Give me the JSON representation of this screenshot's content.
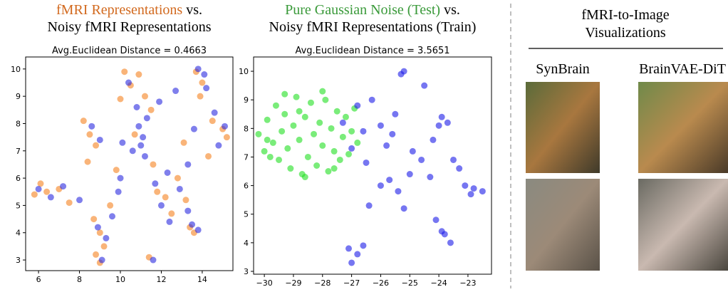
{
  "chart_data": [
    {
      "type": "scatter",
      "title_joiner": "vs.",
      "subtitle": "Avg.Euclidean Distance = 0.4663",
      "xlim": [
        5.37,
        15.5
      ],
      "ylim": [
        2.61,
        10.44
      ],
      "xticks": [
        6,
        8,
        10,
        12,
        14
      ],
      "yticks": [
        3,
        4,
        5,
        6,
        7,
        8,
        9,
        10
      ],
      "series": [
        {
          "name": "fMRI Representations",
          "color": "#f58220",
          "label_color": "#d2691e",
          "x": [
            5.8,
            6.1,
            6.4,
            7.0,
            7.5,
            8.2,
            8.5,
            8.8,
            8.4,
            8.7,
            9.0,
            8.8,
            9.0,
            9.2,
            9.5,
            9.8,
            10.2,
            10.5,
            10.0,
            10.9,
            11.2,
            11.5,
            10.7,
            11.6,
            11.4,
            11.8,
            12.2,
            12.5,
            12.8,
            13.2,
            13.4,
            13.6,
            13.1,
            13.7,
            14.0,
            13.9,
            14.5,
            15.0,
            15.2,
            14.3
          ],
          "values": [
            5.4,
            5.8,
            5.5,
            5.6,
            5.1,
            8.1,
            7.6,
            7.2,
            6.6,
            4.5,
            4.0,
            3.2,
            2.9,
            3.5,
            5.0,
            6.3,
            9.9,
            9.4,
            8.9,
            9.8,
            9.0,
            8.5,
            7.6,
            6.5,
            3.1,
            5.5,
            5.3,
            4.7,
            6.0,
            5.2,
            4.2,
            4.0,
            7.3,
            9.9,
            9.5,
            9.0,
            8.1,
            7.8,
            7.5,
            6.8
          ]
        },
        {
          "name": "Noisy fMRI Representations",
          "color": "#2a2ae0",
          "label_color": "#4169e1",
          "x": [
            6.0,
            6.6,
            7.2,
            8.0,
            8.6,
            9.0,
            8.9,
            9.1,
            9.3,
            9.6,
            10.0,
            10.4,
            10.8,
            10.9,
            11.1,
            11.0,
            10.6,
            11.3,
            11.2,
            11.7,
            11.6,
            12.0,
            12.4,
            12.9,
            13.3,
            13.5,
            13.8,
            13.3,
            13.6,
            13.8,
            14.1,
            14.2,
            14.6,
            15.1,
            14.8,
            12.7,
            11.9,
            10.1,
            9.9,
            12.3
          ],
          "values": [
            5.6,
            5.3,
            5.7,
            5.2,
            7.9,
            7.4,
            4.2,
            3.0,
            3.8,
            4.6,
            6.0,
            9.5,
            8.6,
            7.9,
            7.5,
            7.2,
            7.0,
            8.2,
            6.8,
            5.8,
            3.0,
            5.0,
            4.4,
            5.6,
            4.8,
            4.3,
            4.1,
            6.5,
            7.8,
            10.0,
            9.8,
            9.3,
            8.4,
            7.9,
            7.2,
            9.2,
            8.8,
            7.3,
            5.5,
            6.2
          ]
        }
      ]
    },
    {
      "type": "scatter",
      "title_joiner": "vs.",
      "subtitle": "Avg.Euclidean Distance = 3.5651",
      "xlim": [
        -30.37,
        -22.19
      ],
      "ylim": [
        2.9,
        10.5
      ],
      "xticks": [
        {
          "value": -30,
          "label": "−30"
        },
        {
          "value": -29,
          "label": "−29"
        },
        {
          "value": -28,
          "label": "−28"
        },
        {
          "value": -27,
          "label": "−27"
        },
        {
          "value": -26,
          "label": "−26"
        },
        {
          "value": -25,
          "label": "−25"
        },
        {
          "value": -24,
          "label": "−24"
        },
        {
          "value": -23,
          "label": "−23"
        }
      ],
      "yticks": [
        3,
        4,
        5,
        6,
        7,
        8,
        9,
        10
      ],
      "series": [
        {
          "name": "Pure Gaussian Noise (Test)",
          "color": "#22e022",
          "label_color": "#3a9a3a",
          "x": [
            -30.2,
            -30.0,
            -29.9,
            -29.7,
            -29.6,
            -29.5,
            -29.4,
            -29.3,
            -29.2,
            -29.1,
            -29.0,
            -28.9,
            -28.8,
            -28.7,
            -28.6,
            -28.5,
            -28.4,
            -28.3,
            -28.2,
            -28.1,
            -28.0,
            -27.9,
            -27.8,
            -27.7,
            -27.6,
            -27.5,
            -27.4,
            -27.3,
            -27.2,
            -27.1,
            -27.0,
            -26.9,
            -26.8,
            -29.8,
            -29.3,
            -28.6,
            -28.0,
            -27.6,
            -29.9,
            -28.8
          ],
          "values": [
            7.8,
            7.2,
            8.3,
            7.5,
            8.8,
            6.9,
            7.9,
            8.5,
            7.3,
            6.6,
            8.1,
            9.1,
            7.6,
            6.4,
            8.4,
            7.0,
            8.9,
            7.8,
            6.7,
            8.2,
            7.4,
            9.0,
            6.5,
            8.0,
            7.2,
            8.6,
            6.9,
            7.7,
            8.4,
            7.1,
            7.9,
            8.7,
            7.5,
            7.0,
            9.2,
            6.3,
            9.3,
            6.6,
            7.6,
            8.6
          ]
        },
        {
          "name": "Noisy fMRI Representations (Train)",
          "color": "#1a1ae8",
          "label_color": "#4169e1",
          "x": [
            -27.3,
            -27.0,
            -26.8,
            -26.6,
            -26.5,
            -26.3,
            -26.0,
            -25.8,
            -25.7,
            -25.5,
            -25.3,
            -25.2,
            -25.4,
            -25.2,
            -25.0,
            -24.9,
            -24.6,
            -24.3,
            -24.2,
            -24.0,
            -23.9,
            -23.7,
            -23.5,
            -23.3,
            -23.1,
            -22.8,
            -22.5,
            -22.9,
            -24.1,
            -23.9,
            -23.6,
            -23.8,
            -27.1,
            -27.0,
            -26.8,
            -26.6,
            -26.0,
            -26.4,
            -25.6,
            -24.5
          ],
          "values": [
            8.2,
            7.3,
            8.8,
            7.9,
            6.8,
            9.0,
            8.1,
            7.4,
            6.2,
            8.5,
            9.9,
            10.0,
            5.8,
            5.2,
            6.4,
            7.2,
            6.9,
            6.3,
            7.6,
            8.1,
            8.4,
            8.2,
            6.9,
            6.6,
            6.0,
            5.9,
            5.8,
            5.7,
            4.8,
            4.4,
            4.0,
            4.3,
            3.8,
            3.3,
            3.6,
            3.9,
            6.0,
            5.3,
            7.8,
            9.5
          ]
        }
      ]
    }
  ],
  "panel": {
    "title_lines": [
      "fMRI-to-Image",
      "Visualizations"
    ],
    "columns": [
      "SynBrain",
      "BrainVAE-DiT"
    ]
  }
}
